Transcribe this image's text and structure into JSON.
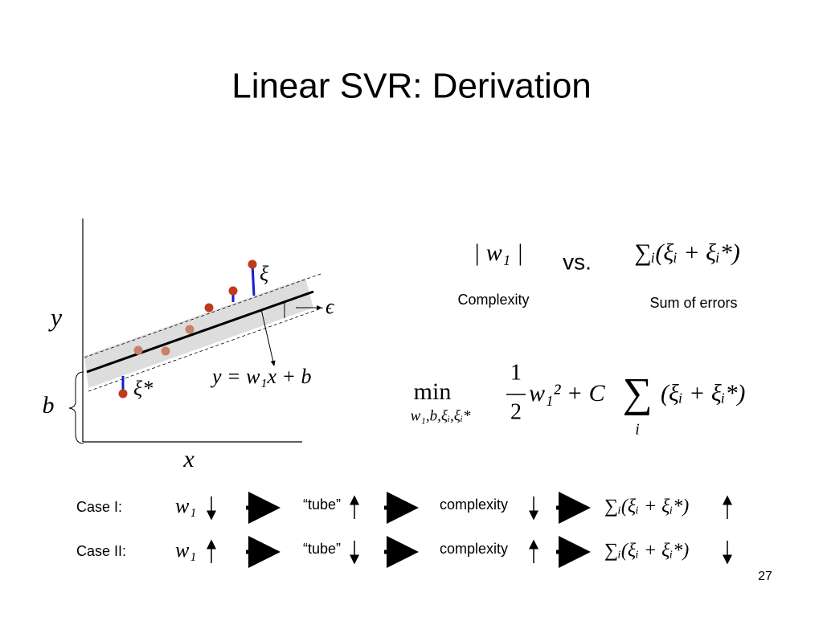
{
  "title": "Linear SVR: Derivation",
  "figure": {
    "y_axis": "y",
    "x_axis": "x",
    "intercept": "b",
    "upper_slack": "ξ",
    "lower_slack": "ξ*",
    "epsilon": "ϵ",
    "line_equation": "y = w₁x + b"
  },
  "comparison": {
    "complexity_term": "| w₁ |",
    "vs": "vs.",
    "error_term": "∑ᵢ(ξᵢ + ξᵢ*)",
    "complexity_label": "Complexity",
    "error_label": "Sum of errors"
  },
  "objective": {
    "min": "min",
    "min_subscript": "w₁,b,ξᵢ,ξᵢ*",
    "fraction_numerator": "1",
    "fraction_denominator": "2",
    "expression": "w₁² + C",
    "sum": "∑",
    "sum_index": "i",
    "summand": "(ξᵢ + ξᵢ*)"
  },
  "cases": [
    {
      "label": "Case I:",
      "w": "w₁",
      "tube": "“tube”",
      "complexity": "complexity",
      "errors": "∑ᵢ(ξᵢ + ξᵢ*)"
    },
    {
      "label": "Case II:",
      "w": "w₁",
      "tube": "“tube”",
      "complexity": "complexity",
      "errors": "∑ᵢ(ξᵢ + ξᵢ*)"
    }
  ],
  "page_number": "27"
}
